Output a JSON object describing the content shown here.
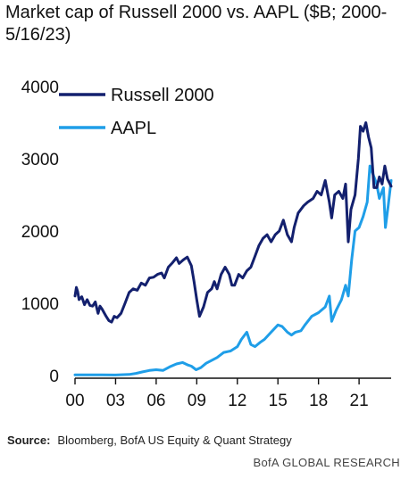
{
  "chart_data": {
    "type": "line",
    "title": "Market cap of Russell 2000 vs. AAPL ($B; 2000-5/16/23)",
    "xlabel": "",
    "ylabel": "",
    "xlim": [
      2000,
      2023.37
    ],
    "ylim": [
      0,
      4000
    ],
    "xticks": [
      {
        "value": 2000,
        "label": "00"
      },
      {
        "value": 2003,
        "label": "03"
      },
      {
        "value": 2006,
        "label": "06"
      },
      {
        "value": 2009,
        "label": "09"
      },
      {
        "value": 2012,
        "label": "12"
      },
      {
        "value": 2015,
        "label": "15"
      },
      {
        "value": 2018,
        "label": "18"
      },
      {
        "value": 2021,
        "label": "21"
      }
    ],
    "yticks": [
      {
        "value": 0,
        "label": "0"
      },
      {
        "value": 1000,
        "label": "1000"
      },
      {
        "value": 2000,
        "label": "2000"
      },
      {
        "value": 3000,
        "label": "3000"
      },
      {
        "value": 4000,
        "label": "4000"
      }
    ],
    "grid": false,
    "legend": "top-left",
    "series": [
      {
        "name": "Russell 2000",
        "color": "#13206e",
        "x": [
          2000.0,
          2000.1,
          2000.2,
          2000.3,
          2000.5,
          2000.7,
          2000.9,
          2001.1,
          2001.3,
          2001.5,
          2001.7,
          2001.85,
          2002.0,
          2002.3,
          2002.5,
          2002.7,
          2002.9,
          2003.1,
          2003.4,
          2003.7,
          2004.0,
          2004.3,
          2004.6,
          2004.9,
          2005.2,
          2005.5,
          2005.8,
          2006.1,
          2006.4,
          2006.6,
          2006.9,
          2007.2,
          2007.5,
          2007.7,
          2008.0,
          2008.3,
          2008.6,
          2008.8,
          2009.0,
          2009.2,
          2009.5,
          2009.8,
          2010.1,
          2010.3,
          2010.5,
          2010.8,
          2011.1,
          2011.4,
          2011.6,
          2011.8,
          2012.1,
          2012.4,
          2012.7,
          2013.0,
          2013.3,
          2013.6,
          2013.9,
          2014.2,
          2014.5,
          2014.8,
          2015.1,
          2015.4,
          2015.7,
          2016.0,
          2016.2,
          2016.5,
          2016.9,
          2017.2,
          2017.6,
          2017.9,
          2018.2,
          2018.5,
          2018.8,
          2018.97,
          2019.2,
          2019.5,
          2019.8,
          2020.0,
          2020.2,
          2020.4,
          2020.7,
          2020.95,
          2021.1,
          2021.3,
          2021.5,
          2021.7,
          2021.9,
          2022.1,
          2022.3,
          2022.5,
          2022.7,
          2022.9,
          2023.1,
          2023.37
        ],
        "values": [
          1100,
          1220,
          1160,
          1050,
          1090,
          980,
          1050,
          970,
          960,
          1020,
          860,
          960,
          920,
          820,
          760,
          740,
          820,
          800,
          860,
          1000,
          1150,
          1200,
          1180,
          1280,
          1250,
          1350,
          1360,
          1400,
          1420,
          1350,
          1500,
          1560,
          1630,
          1550,
          1600,
          1640,
          1520,
          1300,
          1050,
          820,
          950,
          1150,
          1200,
          1300,
          1200,
          1400,
          1500,
          1400,
          1250,
          1250,
          1400,
          1350,
          1450,
          1500,
          1650,
          1800,
          1900,
          1950,
          1850,
          1950,
          2000,
          2150,
          1950,
          1850,
          2050,
          2250,
          2350,
          2400,
          2450,
          2550,
          2500,
          2700,
          2400,
          2180,
          2500,
          2550,
          2450,
          2650,
          1850,
          2300,
          2500,
          3000,
          3450,
          3380,
          3500,
          3300,
          3150,
          2600,
          2600,
          2750,
          2650,
          2900,
          2720,
          2620
        ]
      },
      {
        "name": "AAPL",
        "color": "#1f9ee8",
        "x": [
          2000.0,
          2001.0,
          2002.0,
          2003.0,
          2004.0,
          2004.5,
          2005.0,
          2005.5,
          2006.0,
          2006.5,
          2007.0,
          2007.5,
          2007.95,
          2008.3,
          2008.6,
          2008.95,
          2009.3,
          2009.7,
          2010.0,
          2010.5,
          2011.0,
          2011.5,
          2012.0,
          2012.3,
          2012.7,
          2013.0,
          2013.3,
          2013.7,
          2014.0,
          2014.5,
          2015.0,
          2015.3,
          2015.7,
          2016.0,
          2016.3,
          2016.7,
          2017.0,
          2017.5,
          2018.0,
          2018.5,
          2018.8,
          2018.97,
          2019.3,
          2019.7,
          2020.0,
          2020.2,
          2020.45,
          2020.7,
          2021.0,
          2021.3,
          2021.6,
          2021.8,
          2022.0,
          2022.3,
          2022.5,
          2022.8,
          2022.95,
          2023.15,
          2023.37
        ],
        "values": [
          10,
          10,
          10,
          8,
          15,
          30,
          50,
          70,
          80,
          70,
          120,
          160,
          180,
          150,
          130,
          80,
          110,
          170,
          200,
          250,
          320,
          340,
          400,
          500,
          600,
          430,
          400,
          460,
          500,
          600,
          700,
          680,
          600,
          560,
          600,
          620,
          700,
          820,
          870,
          950,
          1100,
          750,
          900,
          1050,
          1250,
          1100,
          1600,
          2000,
          2050,
          2200,
          2400,
          2900,
          2800,
          2650,
          2450,
          2600,
          2050,
          2350,
          2700
        ]
      }
    ],
    "source_label": "Source:",
    "source_text": "Bloomberg, BofA US Equity & Quant Strategy",
    "brand": "BofA GLOBAL RESEARCH"
  }
}
